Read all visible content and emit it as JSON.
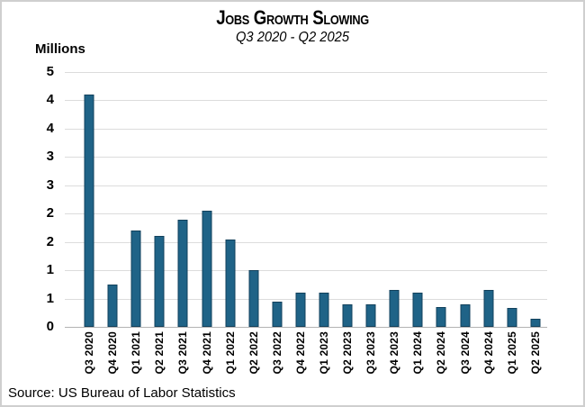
{
  "chart_data": {
    "type": "bar",
    "title": "Jobs Growth Slowing",
    "subtitle": "Q3 2020 - Q2 2025",
    "y_axis_label": "Millions",
    "source": "Source: US Bureau of Labor Statistics",
    "categories": [
      "Q3 2020",
      "Q4 2020",
      "Q1 2021",
      "Q2 2021",
      "Q3 2021",
      "Q4 2021",
      "Q1 2022",
      "Q2 2022",
      "Q3 2022",
      "Q4 2022",
      "Q1 2023",
      "Q2 2023",
      "Q3 2023",
      "Q4 2023",
      "Q1 2024",
      "Q2 2024",
      "Q3 2024",
      "Q4 2024",
      "Q1 2025",
      "Q2 2025"
    ],
    "values": [
      4.1,
      0.75,
      1.7,
      1.6,
      1.9,
      2.05,
      1.55,
      1.0,
      0.45,
      0.6,
      0.6,
      0.4,
      0.4,
      0.65,
      0.6,
      0.35,
      0.4,
      0.65,
      0.33,
      0.15
    ],
    "ylim": [
      0,
      4.5
    ],
    "y_tick_values": [
      4.5,
      4.0,
      3.5,
      3.0,
      2.5,
      2.0,
      1.5,
      1.0,
      0.5,
      0.0
    ],
    "y_tick_labels": [
      "5",
      "4",
      "4",
      "3",
      "3",
      "2",
      "2",
      "1",
      "1",
      "0"
    ],
    "grid": true,
    "legend": "none",
    "bar_color": "#1f6387",
    "bar_border_color": "#12415c",
    "gridline_color": "#dcdcdc",
    "axis_line_color": "#b3b3b3"
  }
}
